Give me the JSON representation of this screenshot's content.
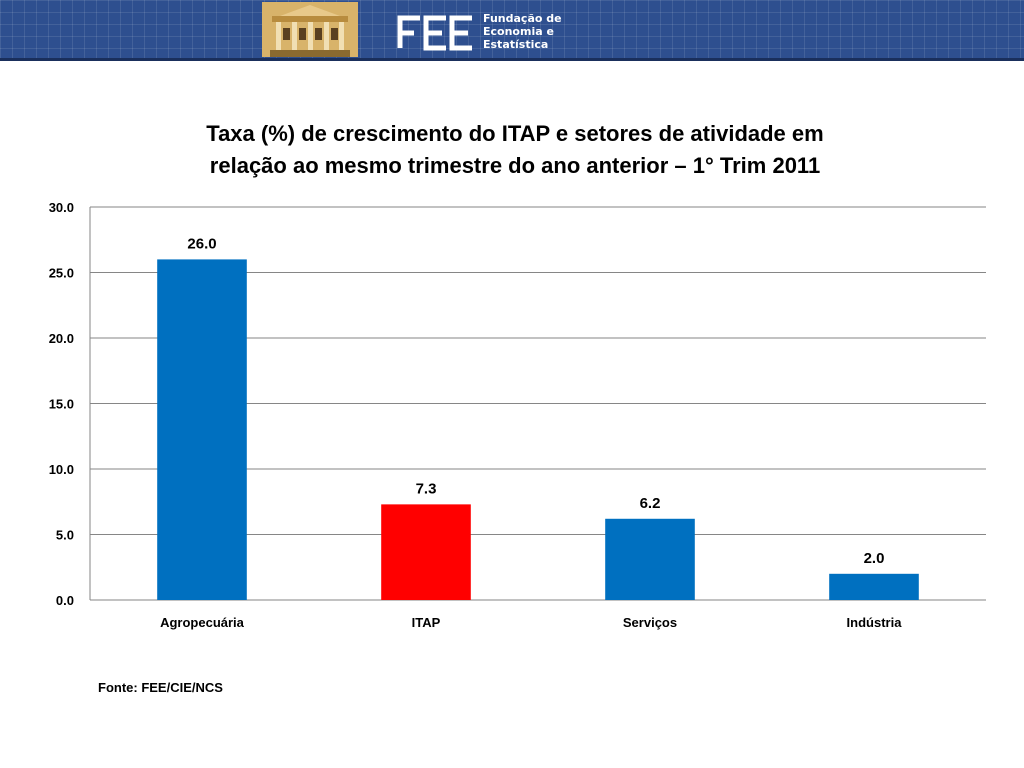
{
  "header": {
    "logo_lines": [
      "Fundação de",
      "Economia e",
      "Estatística"
    ],
    "logo_mark": "FEE",
    "image": "building-image"
  },
  "chart_data": {
    "type": "bar",
    "title_lines": [
      "Taxa (%) de crescimento do ITAP e setores de atividade em",
      "relação ao mesmo trimestre do ano anterior – 1° Trim 2011"
    ],
    "categories": [
      "Agropecuária",
      "ITAP",
      "Serviços",
      "Indústria"
    ],
    "values": [
      26.0,
      7.3,
      6.2,
      2.0
    ],
    "value_labels": [
      "26.0",
      "7.3",
      "6.2",
      "2.0"
    ],
    "colors": [
      "#0070c0",
      "#ff0000",
      "#0070c0",
      "#0070c0"
    ],
    "ylim": [
      0,
      30
    ],
    "yticks": [
      "0.0",
      "5.0",
      "10.0",
      "15.0",
      "20.0",
      "25.0",
      "30.0"
    ],
    "grid": true,
    "legend": "none"
  },
  "source": "Fonte: FEE/CIE/NCS"
}
